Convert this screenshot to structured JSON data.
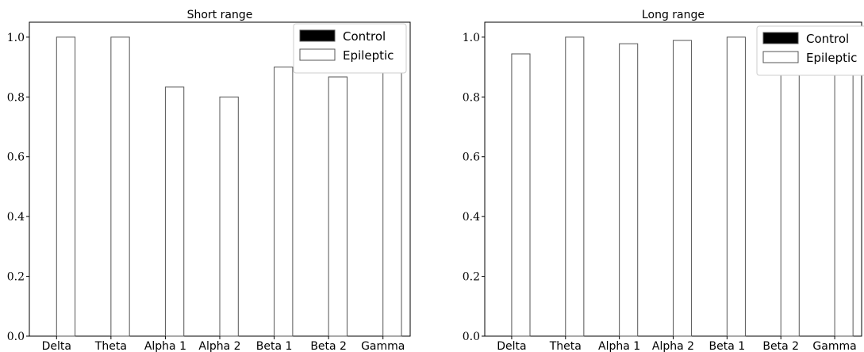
{
  "chart_data": [
    {
      "type": "bar",
      "title": "Short range",
      "xlabel": "",
      "ylabel": "",
      "ylim": [
        0,
        1.05
      ],
      "yticks": [
        "0.0",
        "0.2",
        "0.4",
        "0.6",
        "0.8",
        "1.0"
      ],
      "categories": [
        "Delta",
        "Theta",
        "Alpha 1",
        "Alpha 2",
        "Beta 1",
        "Beta 2",
        "Gamma"
      ],
      "series": [
        {
          "name": "Control",
          "color": "#000000",
          "values": [
            0,
            0,
            0,
            0,
            0,
            0,
            0
          ]
        },
        {
          "name": "Epileptic",
          "color": "#ffffff",
          "values": [
            1.0,
            1.0,
            0.833,
            0.8,
            0.9,
            0.867,
            0.9
          ]
        }
      ],
      "legend": "top-right",
      "grid": false
    },
    {
      "type": "bar",
      "title": "Long range",
      "xlabel": "",
      "ylabel": "",
      "ylim": [
        0,
        1.05
      ],
      "yticks": [
        "0.0",
        "0.2",
        "0.4",
        "0.6",
        "0.8",
        "1.0"
      ],
      "categories": [
        "Delta",
        "Theta",
        "Alpha 1",
        "Alpha 2",
        "Beta 1",
        "Beta 2",
        "Gamma"
      ],
      "series": [
        {
          "name": "Control",
          "color": "#000000",
          "values": [
            0,
            0,
            0,
            0,
            0,
            0,
            0
          ]
        },
        {
          "name": "Epileptic",
          "color": "#ffffff",
          "values": [
            0.944,
            1.0,
            0.978,
            0.989,
            1.0,
            0.95,
            0.95
          ]
        }
      ],
      "legend": "top-right",
      "grid": false
    }
  ]
}
